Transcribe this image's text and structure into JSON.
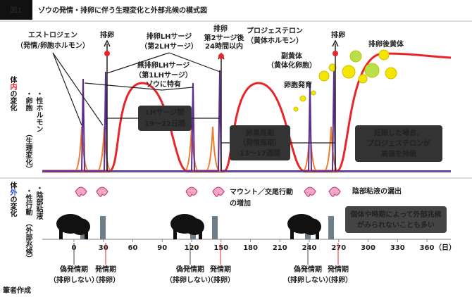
{
  "header": {
    "badge": "図1",
    "title": "ゾウの発情・排卵に伴う生理変化と外部兆候の模式図"
  },
  "internal": {
    "label": [
      "体",
      "内",
      "の変化"
    ],
    "note": "（生理変化）",
    "items": [
      "・卵胞",
      "・性ホルモン"
    ]
  },
  "external": {
    "label": [
      "体",
      "外",
      "の変化"
    ],
    "note": "（外部兆候）",
    "items": [
      "・陰部粘液",
      "・性行動"
    ]
  },
  "annotations": {
    "estrogen": [
      "エストロジェン",
      "（発情/卵胞ホルモン）"
    ],
    "ovulation_1": "排卵",
    "ovulatory_lh": [
      "排卵LHサージ",
      "（第2LHサージ）"
    ],
    "anovulatory_lh": [
      "無排卵LHサージ",
      "（第1LHサージ）",
      "ゾウに特有"
    ],
    "ovulation_2": [
      "排卵",
      "第2サージ後",
      "24時間以内"
    ],
    "progesterone": [
      "プロジェステロン",
      "（黄体ホルモン）"
    ],
    "ovulation_3": "排卵",
    "post_ovulation_cl": "排卵後黄体",
    "accessory_cl": [
      "副黄体",
      "（黄体化卵胞）"
    ],
    "follicle_growth": "卵胞発育",
    "lh_interval": [
      "LHサージ間",
      "19〜22日間"
    ],
    "ovarian_cycle": [
      "卵巣周期",
      "（発情周期）",
      "13〜17週間"
    ],
    "pregnancy": [
      "妊娠した場合，",
      "プロジェステロンが",
      "高値を持続"
    ],
    "mounting": [
      "マウント／交尾行動",
      "の増加"
    ],
    "mucus": "陰部粘液の漏出",
    "no_signs": [
      "個体や時期によって外部兆候",
      "がみられないことも多い"
    ]
  },
  "axis": {
    "ticks": [
      0,
      30,
      60,
      90,
      120,
      150,
      180,
      210,
      240,
      270,
      300,
      330,
      360
    ],
    "unit": "（日）"
  },
  "phases": [
    {
      "pseudo": [
        "偽発情期",
        "（排卵しない）"
      ],
      "estrus": [
        "発情期",
        "（排卵）"
      ]
    },
    {
      "pseudo": [
        "偽発情期",
        "（排卵しない）"
      ],
      "estrus": [
        "発情期",
        "（排卵）"
      ]
    },
    {
      "pseudo": [
        "偽発情期",
        "（排卵しない）"
      ],
      "estrus": [
        "発情期",
        "（排卵）"
      ]
    }
  ],
  "footer": "筆者作成"
}
